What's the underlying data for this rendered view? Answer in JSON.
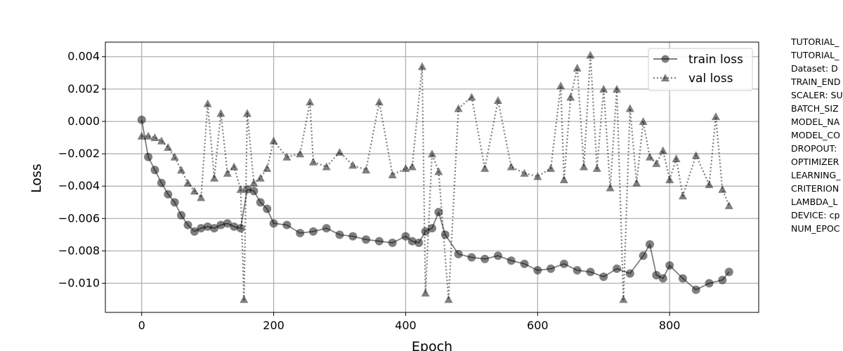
{
  "chart_data": {
    "type": "line",
    "title": "",
    "xlabel": "Epoch",
    "ylabel": "Loss",
    "xlim": [
      -55,
      935
    ],
    "ylim": [
      -0.0118,
      0.0049
    ],
    "x_ticks": [
      0,
      200,
      400,
      600,
      800
    ],
    "y_ticks": [
      0.004,
      0.002,
      0.0,
      -0.002,
      -0.004,
      -0.006,
      -0.008,
      -0.01
    ],
    "x_tick_labels": [
      "0",
      "200",
      "400",
      "600",
      "800"
    ],
    "y_tick_labels": [
      "0.004",
      "0.002",
      "0.000",
      "−0.002",
      "−0.004",
      "−0.006",
      "−0.008",
      "−0.010"
    ],
    "grid": true,
    "legend_position": "top-right",
    "series": [
      {
        "name": "train loss",
        "marker": "circle",
        "linestyle": "solid",
        "color": "#000000",
        "x": [
          0,
          10,
          20,
          30,
          40,
          50,
          60,
          70,
          80,
          90,
          100,
          110,
          120,
          130,
          140,
          150,
          160,
          170,
          180,
          190,
          200,
          220,
          240,
          260,
          280,
          300,
          320,
          340,
          360,
          380,
          400,
          410,
          420,
          430,
          440,
          450,
          460,
          480,
          500,
          520,
          540,
          560,
          580,
          600,
          620,
          640,
          660,
          680,
          700,
          720,
          740,
          760,
          770,
          780,
          790,
          800,
          820,
          840,
          860,
          880,
          890
        ],
        "y": [
          0.0001,
          -0.0022,
          -0.003,
          -0.0038,
          -0.0045,
          -0.005,
          -0.0058,
          -0.0064,
          -0.0068,
          -0.0066,
          -0.0065,
          -0.0066,
          -0.0064,
          -0.0063,
          -0.0065,
          -0.0066,
          -0.0042,
          -0.0043,
          -0.005,
          -0.0054,
          -0.0063,
          -0.0064,
          -0.0069,
          -0.0068,
          -0.0066,
          -0.007,
          -0.0071,
          -0.0073,
          -0.0074,
          -0.0075,
          -0.0071,
          -0.0074,
          -0.0075,
          -0.0068,
          -0.0066,
          -0.0056,
          -0.007,
          -0.0082,
          -0.0084,
          -0.0085,
          -0.0083,
          -0.0086,
          -0.0088,
          -0.0092,
          -0.0091,
          -0.0088,
          -0.0092,
          -0.0093,
          -0.0096,
          -0.0091,
          -0.0094,
          -0.0083,
          -0.0076,
          -0.0095,
          -0.0097,
          -0.0089,
          -0.0097,
          -0.0104,
          -0.01,
          -0.0098,
          -0.0093
        ]
      },
      {
        "name": "val loss",
        "marker": "triangle",
        "linestyle": "dotted",
        "color": "#000000",
        "x": [
          0,
          10,
          20,
          30,
          40,
          50,
          60,
          70,
          80,
          90,
          100,
          110,
          120,
          130,
          140,
          150,
          155,
          160,
          170,
          180,
          190,
          200,
          220,
          240,
          255,
          260,
          280,
          300,
          320,
          340,
          360,
          380,
          400,
          410,
          425,
          430,
          440,
          450,
          465,
          480,
          500,
          520,
          540,
          560,
          580,
          600,
          620,
          635,
          640,
          650,
          660,
          670,
          680,
          690,
          700,
          710,
          720,
          730,
          740,
          750,
          760,
          770,
          780,
          790,
          800,
          810,
          820,
          840,
          860,
          870,
          880,
          890
        ],
        "y": [
          -0.0009,
          -0.0009,
          -0.001,
          -0.0012,
          -0.0016,
          -0.0022,
          -0.003,
          -0.0038,
          -0.0043,
          -0.0047,
          0.0011,
          -0.0035,
          0.0005,
          -0.0032,
          -0.0028,
          -0.0042,
          -0.011,
          0.0005,
          -0.0038,
          -0.0035,
          -0.0029,
          -0.0012,
          -0.0022,
          -0.002,
          0.0012,
          -0.0025,
          -0.0028,
          -0.0019,
          -0.0027,
          -0.003,
          0.0012,
          -0.0033,
          -0.0029,
          -0.0028,
          0.0034,
          -0.0106,
          -0.002,
          -0.0031,
          -0.011,
          0.0008,
          0.0015,
          -0.0029,
          0.0013,
          -0.0028,
          -0.0032,
          -0.0034,
          -0.0029,
          0.0022,
          -0.0036,
          0.0015,
          0.0033,
          -0.0028,
          0.0041,
          -0.0029,
          0.002,
          -0.0041,
          0.002,
          -0.011,
          0.0008,
          -0.0038,
          0.0,
          -0.0022,
          -0.0026,
          -0.0018,
          -0.0036,
          -0.0023,
          -0.0046,
          -0.0021,
          -0.0039,
          0.0003,
          -0.0042,
          -0.0052
        ]
      }
    ],
    "side_notes": [
      "TUTORIAL_",
      "TUTORIAL_",
      "Dataset: D",
      "TRAIN_END",
      "SCALER: SU",
      "BATCH_SIZ",
      "MODEL_NA",
      "MODEL_CO",
      "DROPOUT:",
      "OPTIMIZER",
      "LEARNING_",
      "CRITERION",
      "LAMBDA_L",
      "DEVICE: cp",
      "NUM_EPOC"
    ]
  }
}
